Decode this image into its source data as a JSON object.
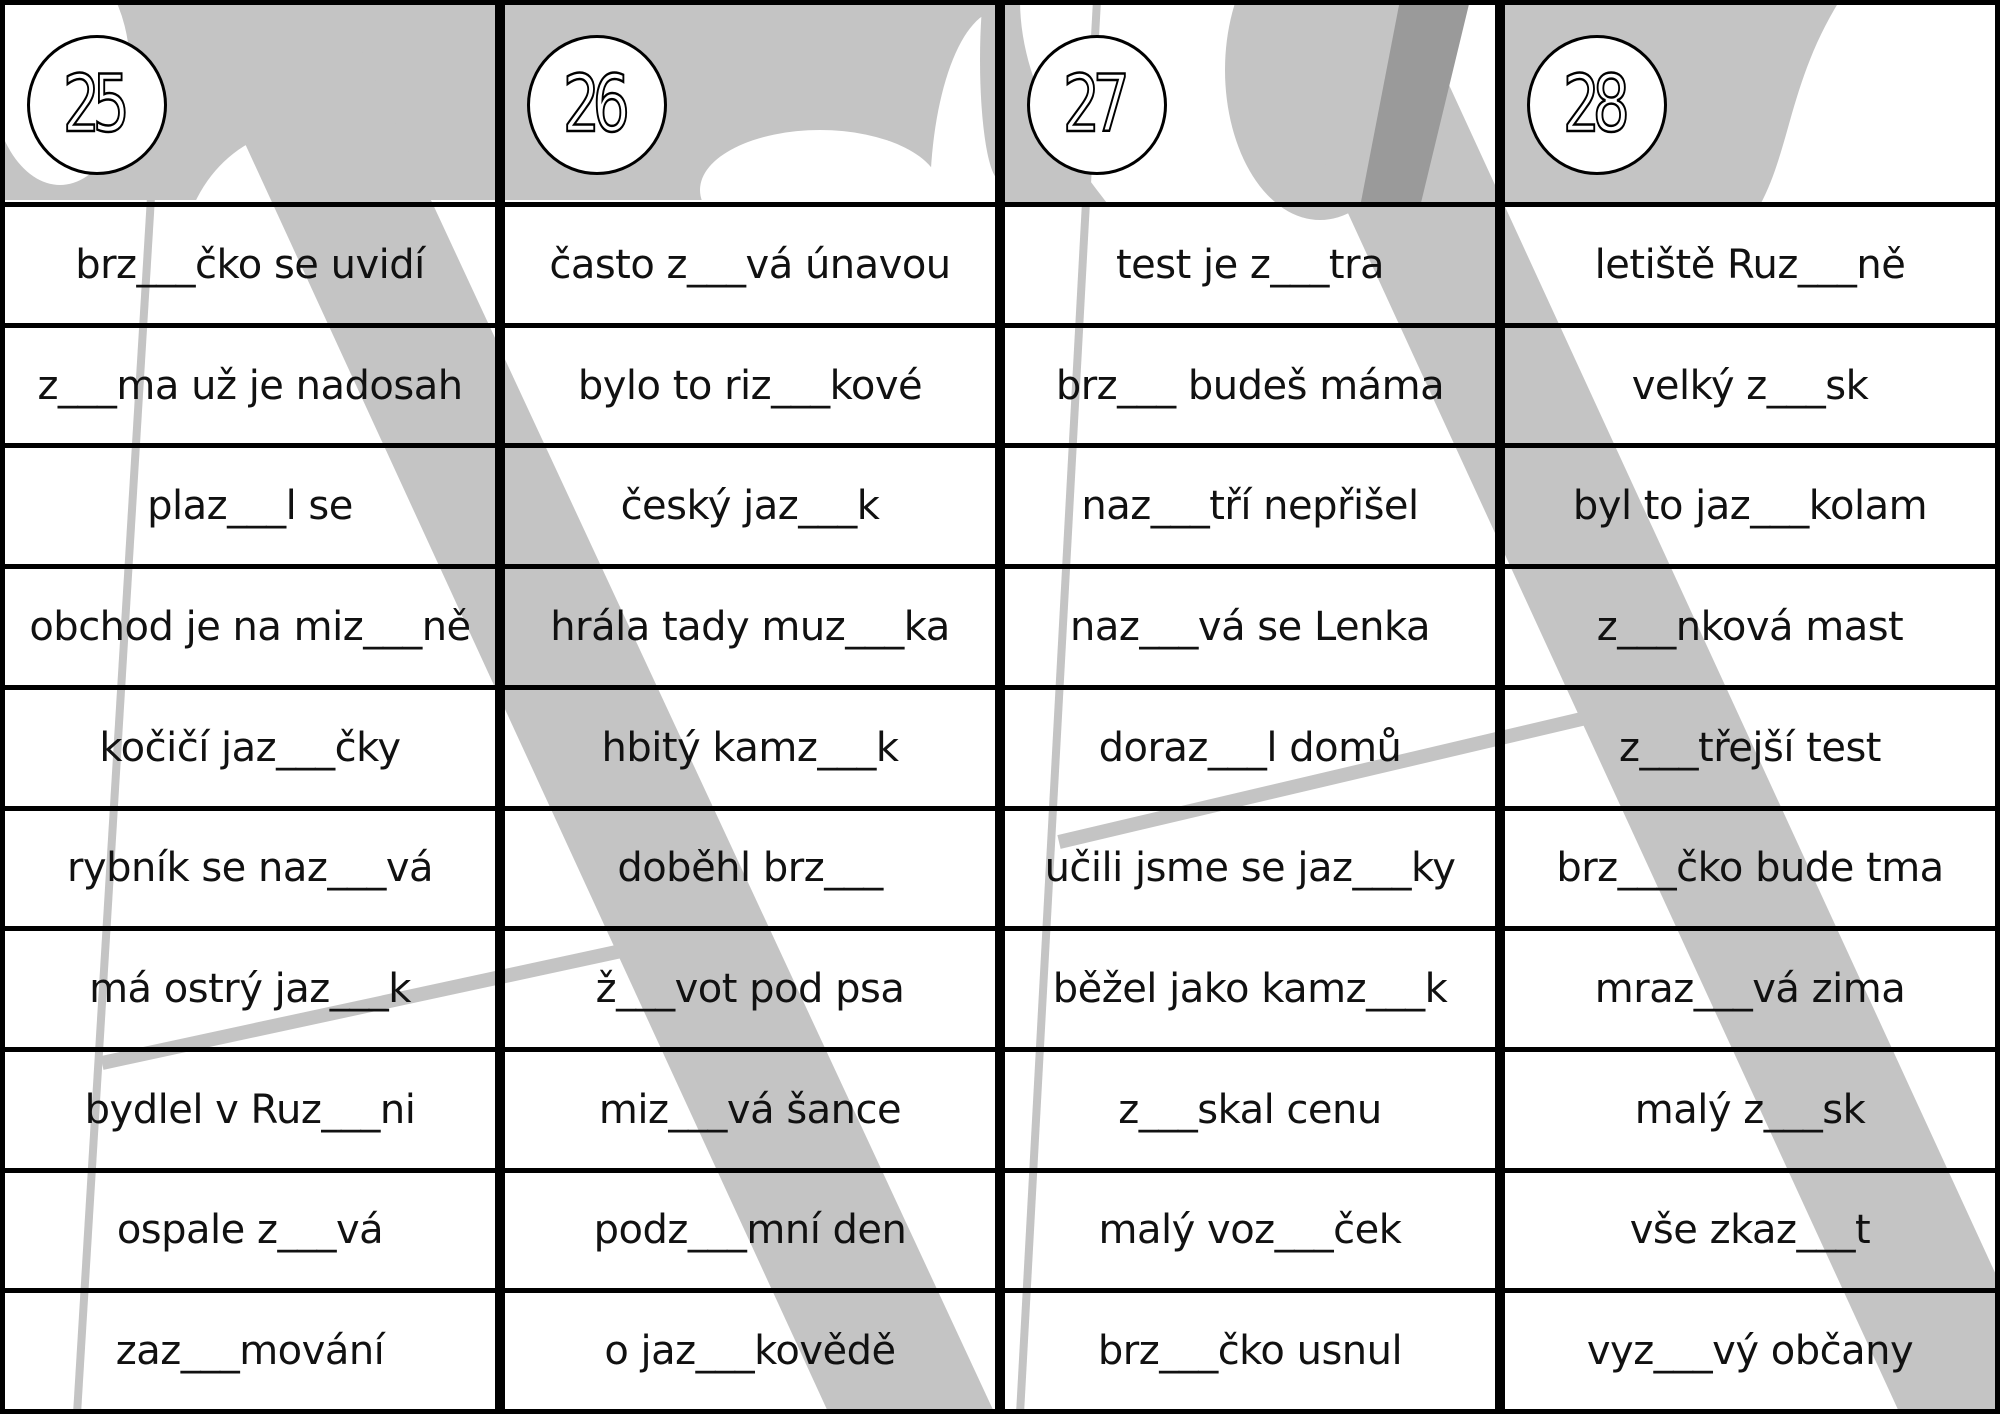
{
  "cards": [
    {
      "number": "25",
      "phrases": [
        "brz___čko se uvidí",
        "z___ma už je nadosah",
        "plaz___l se",
        "obchod je na miz___ně",
        "kočičí jaz___čky",
        "rybník se naz___vá",
        "má ostrý jaz___k",
        "bydlel v Ruz___ni",
        "ospale z___vá",
        "zaz___mování"
      ]
    },
    {
      "number": "26",
      "phrases": [
        "často z___vá únavou",
        "bylo to riz___kové",
        "český jaz___k",
        "hrála tady muz___ka",
        "hbitý kamz___k",
        "doběhl brz___",
        "ž___vot pod psa",
        "miz___vá šance",
        "podz___mní den",
        "o jaz___kovědě"
      ]
    },
    {
      "number": "27",
      "phrases": [
        "test je z___tra",
        "brz___ budeš máma",
        "naz___tří nepřišel",
        "naz___vá se Lenka",
        "doraz___l domů",
        "učili jsme se jaz___ky",
        "běžel jako kamz___k",
        "z___skal cenu",
        "malý voz___ček",
        "brz___čko usnul"
      ]
    },
    {
      "number": "28",
      "phrases": [
        "letiště Ruz___ně",
        "velký z___sk",
        "byl to jaz___kolam",
        "z___nková mast",
        "z___třejší test",
        "brz___čko bude tma",
        "mraz___vá zima",
        "malý z___sk",
        "vše zkaz___t",
        "vyz___vý občany"
      ]
    }
  ],
  "colors": {
    "background_shape": "#c4c4c4",
    "overlap_shape": "#9a9a9a",
    "border": "#000000"
  }
}
